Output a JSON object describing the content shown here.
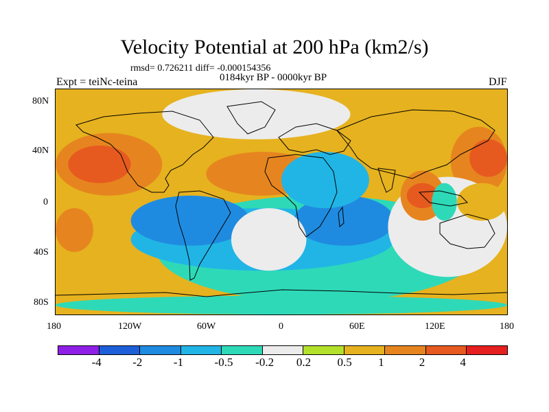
{
  "title": "Velocity Potential at 200 hPa (km2/s)",
  "stats": "rmsd= 0.726211 diff= -0.000154356",
  "period": "0184kyr BP - 0000kyr BP",
  "experiment": "Expt = teiNc-teina",
  "season": "DJF",
  "axes": {
    "y_ticks": [
      "80N",
      "40N",
      "0",
      "40S",
      "80S"
    ],
    "x_ticks": [
      "180",
      "120W",
      "60W",
      "0",
      "60E",
      "120E",
      "180"
    ]
  },
  "colorbar": {
    "colors": [
      "#8e1fe6",
      "#1d5ed9",
      "#1f8be0",
      "#21b5e6",
      "#2ed9b8",
      "#ececec",
      "#b3e02a",
      "#e6b21f",
      "#e6851f",
      "#e65a1f",
      "#e61f1f"
    ],
    "labels": [
      "-4",
      "-2",
      "-1",
      "-0.5",
      "-0.2",
      "0.2",
      "0.5",
      "1",
      "2",
      "4"
    ]
  },
  "chart_data": {
    "type": "heatmap",
    "title": "Velocity Potential at 200 hPa (km2/s)",
    "xlabel": "",
    "ylabel": "",
    "x_range": [
      -180,
      180
    ],
    "y_range": [
      -90,
      90
    ],
    "levels": [
      -4,
      -2,
      -1,
      -0.5,
      -0.2,
      0.2,
      0.5,
      1,
      2,
      4
    ],
    "regions": [
      {
        "value": 0.5,
        "lon": [
          -180,
          180
        ],
        "lat": [
          -90,
          90
        ]
      },
      {
        "value": 0.0,
        "lon": [
          -95,
          55
        ],
        "lat": [
          50,
          90
        ]
      },
      {
        "value": 1.2,
        "lon": [
          -180,
          -95
        ],
        "lat": [
          5,
          55
        ]
      },
      {
        "value": 2.2,
        "lon": [
          -170,
          -120
        ],
        "lat": [
          15,
          45
        ]
      },
      {
        "value": 1.2,
        "lon": [
          135,
          180
        ],
        "lat": [
          5,
          60
        ]
      },
      {
        "value": 2.2,
        "lon": [
          150,
          180
        ],
        "lat": [
          20,
          50
        ]
      },
      {
        "value": 1.2,
        "lon": [
          -60,
          30
        ],
        "lat": [
          5,
          40
        ]
      },
      {
        "value": -0.3,
        "lon": [
          -100,
          160
        ],
        "lat": [
          -80,
          5
        ]
      },
      {
        "value": -0.7,
        "lon": [
          -120,
          90
        ],
        "lat": [
          -55,
          -5
        ]
      },
      {
        "value": -1.5,
        "lon": [
          -120,
          -25
        ],
        "lat": [
          -35,
          5
        ]
      },
      {
        "value": -1.5,
        "lon": [
          10,
          90
        ],
        "lat": [
          -35,
          5
        ]
      },
      {
        "value": -0.7,
        "lon": [
          0,
          70
        ],
        "lat": [
          -5,
          40
        ]
      },
      {
        "value": 0.0,
        "lon": [
          -40,
          20
        ],
        "lat": [
          -55,
          -5
        ]
      },
      {
        "value": 0.0,
        "lon": [
          85,
          180
        ],
        "lat": [
          -60,
          20
        ]
      },
      {
        "value": 1.2,
        "lon": [
          95,
          130
        ],
        "lat": [
          -15,
          25
        ]
      },
      {
        "value": 2.2,
        "lon": [
          100,
          125
        ],
        "lat": [
          -5,
          15
        ]
      },
      {
        "value": -0.3,
        "lon": [
          120,
          140
        ],
        "lat": [
          -15,
          15
        ]
      },
      {
        "value": 0.7,
        "lon": [
          140,
          180
        ],
        "lat": [
          -15,
          15
        ]
      },
      {
        "value": 1.2,
        "lon": [
          -180,
          -150
        ],
        "lat": [
          -40,
          -5
        ]
      },
      {
        "value": -0.3,
        "lon": [
          -180,
          180
        ],
        "lat": [
          -90,
          -75
        ]
      }
    ]
  }
}
